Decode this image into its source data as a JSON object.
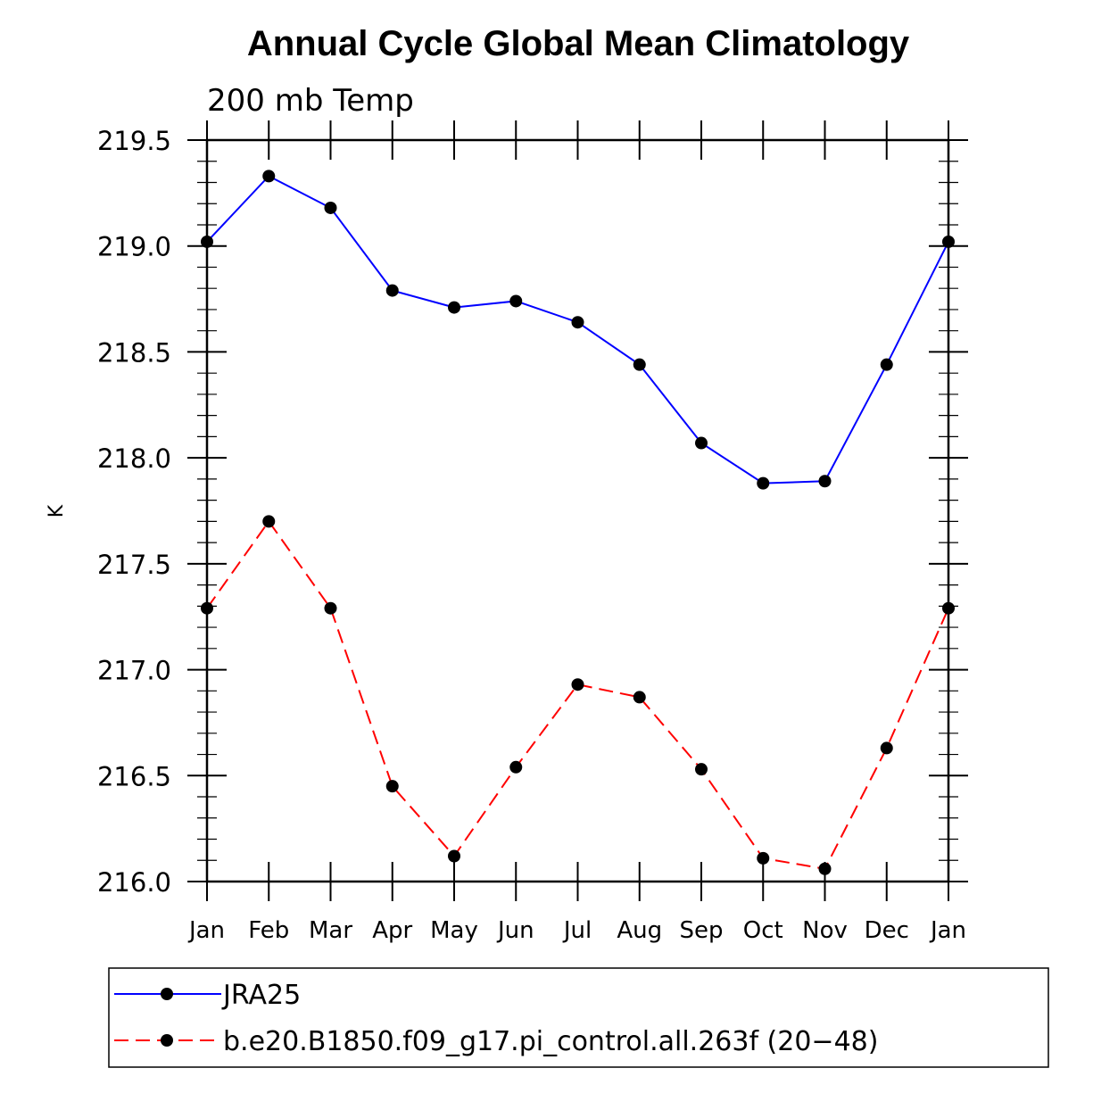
{
  "chart_data": {
    "type": "line",
    "title": "Annual Cycle Global Mean Climatology",
    "subtitle": "200 mb Temp",
    "xlabel": "",
    "ylabel": "K",
    "categories": [
      "Jan",
      "Feb",
      "Mar",
      "Apr",
      "May",
      "Jun",
      "Jul",
      "Aug",
      "Sep",
      "Oct",
      "Nov",
      "Dec",
      "Jan"
    ],
    "ylim": [
      216.0,
      219.5
    ],
    "yticks": [
      "216.0",
      "216.5",
      "217.0",
      "217.5",
      "218.0",
      "218.5",
      "219.0",
      "219.5"
    ],
    "grid": false,
    "legend_position": "bottom",
    "series": [
      {
        "name": "JRA25",
        "color": "#0000ff",
        "dash": "solid",
        "values": [
          219.02,
          219.33,
          219.18,
          218.79,
          218.71,
          218.74,
          218.64,
          218.44,
          218.07,
          217.88,
          217.89,
          218.44,
          219.02
        ]
      },
      {
        "name": "b.e20.B1850.f09_g17.pi_control.all.263f (20−48)",
        "color": "#ff0000",
        "dash": "dashed",
        "values": [
          217.29,
          217.7,
          217.29,
          216.45,
          216.12,
          216.54,
          216.93,
          216.87,
          216.53,
          216.11,
          216.06,
          216.63,
          217.29
        ]
      }
    ]
  }
}
